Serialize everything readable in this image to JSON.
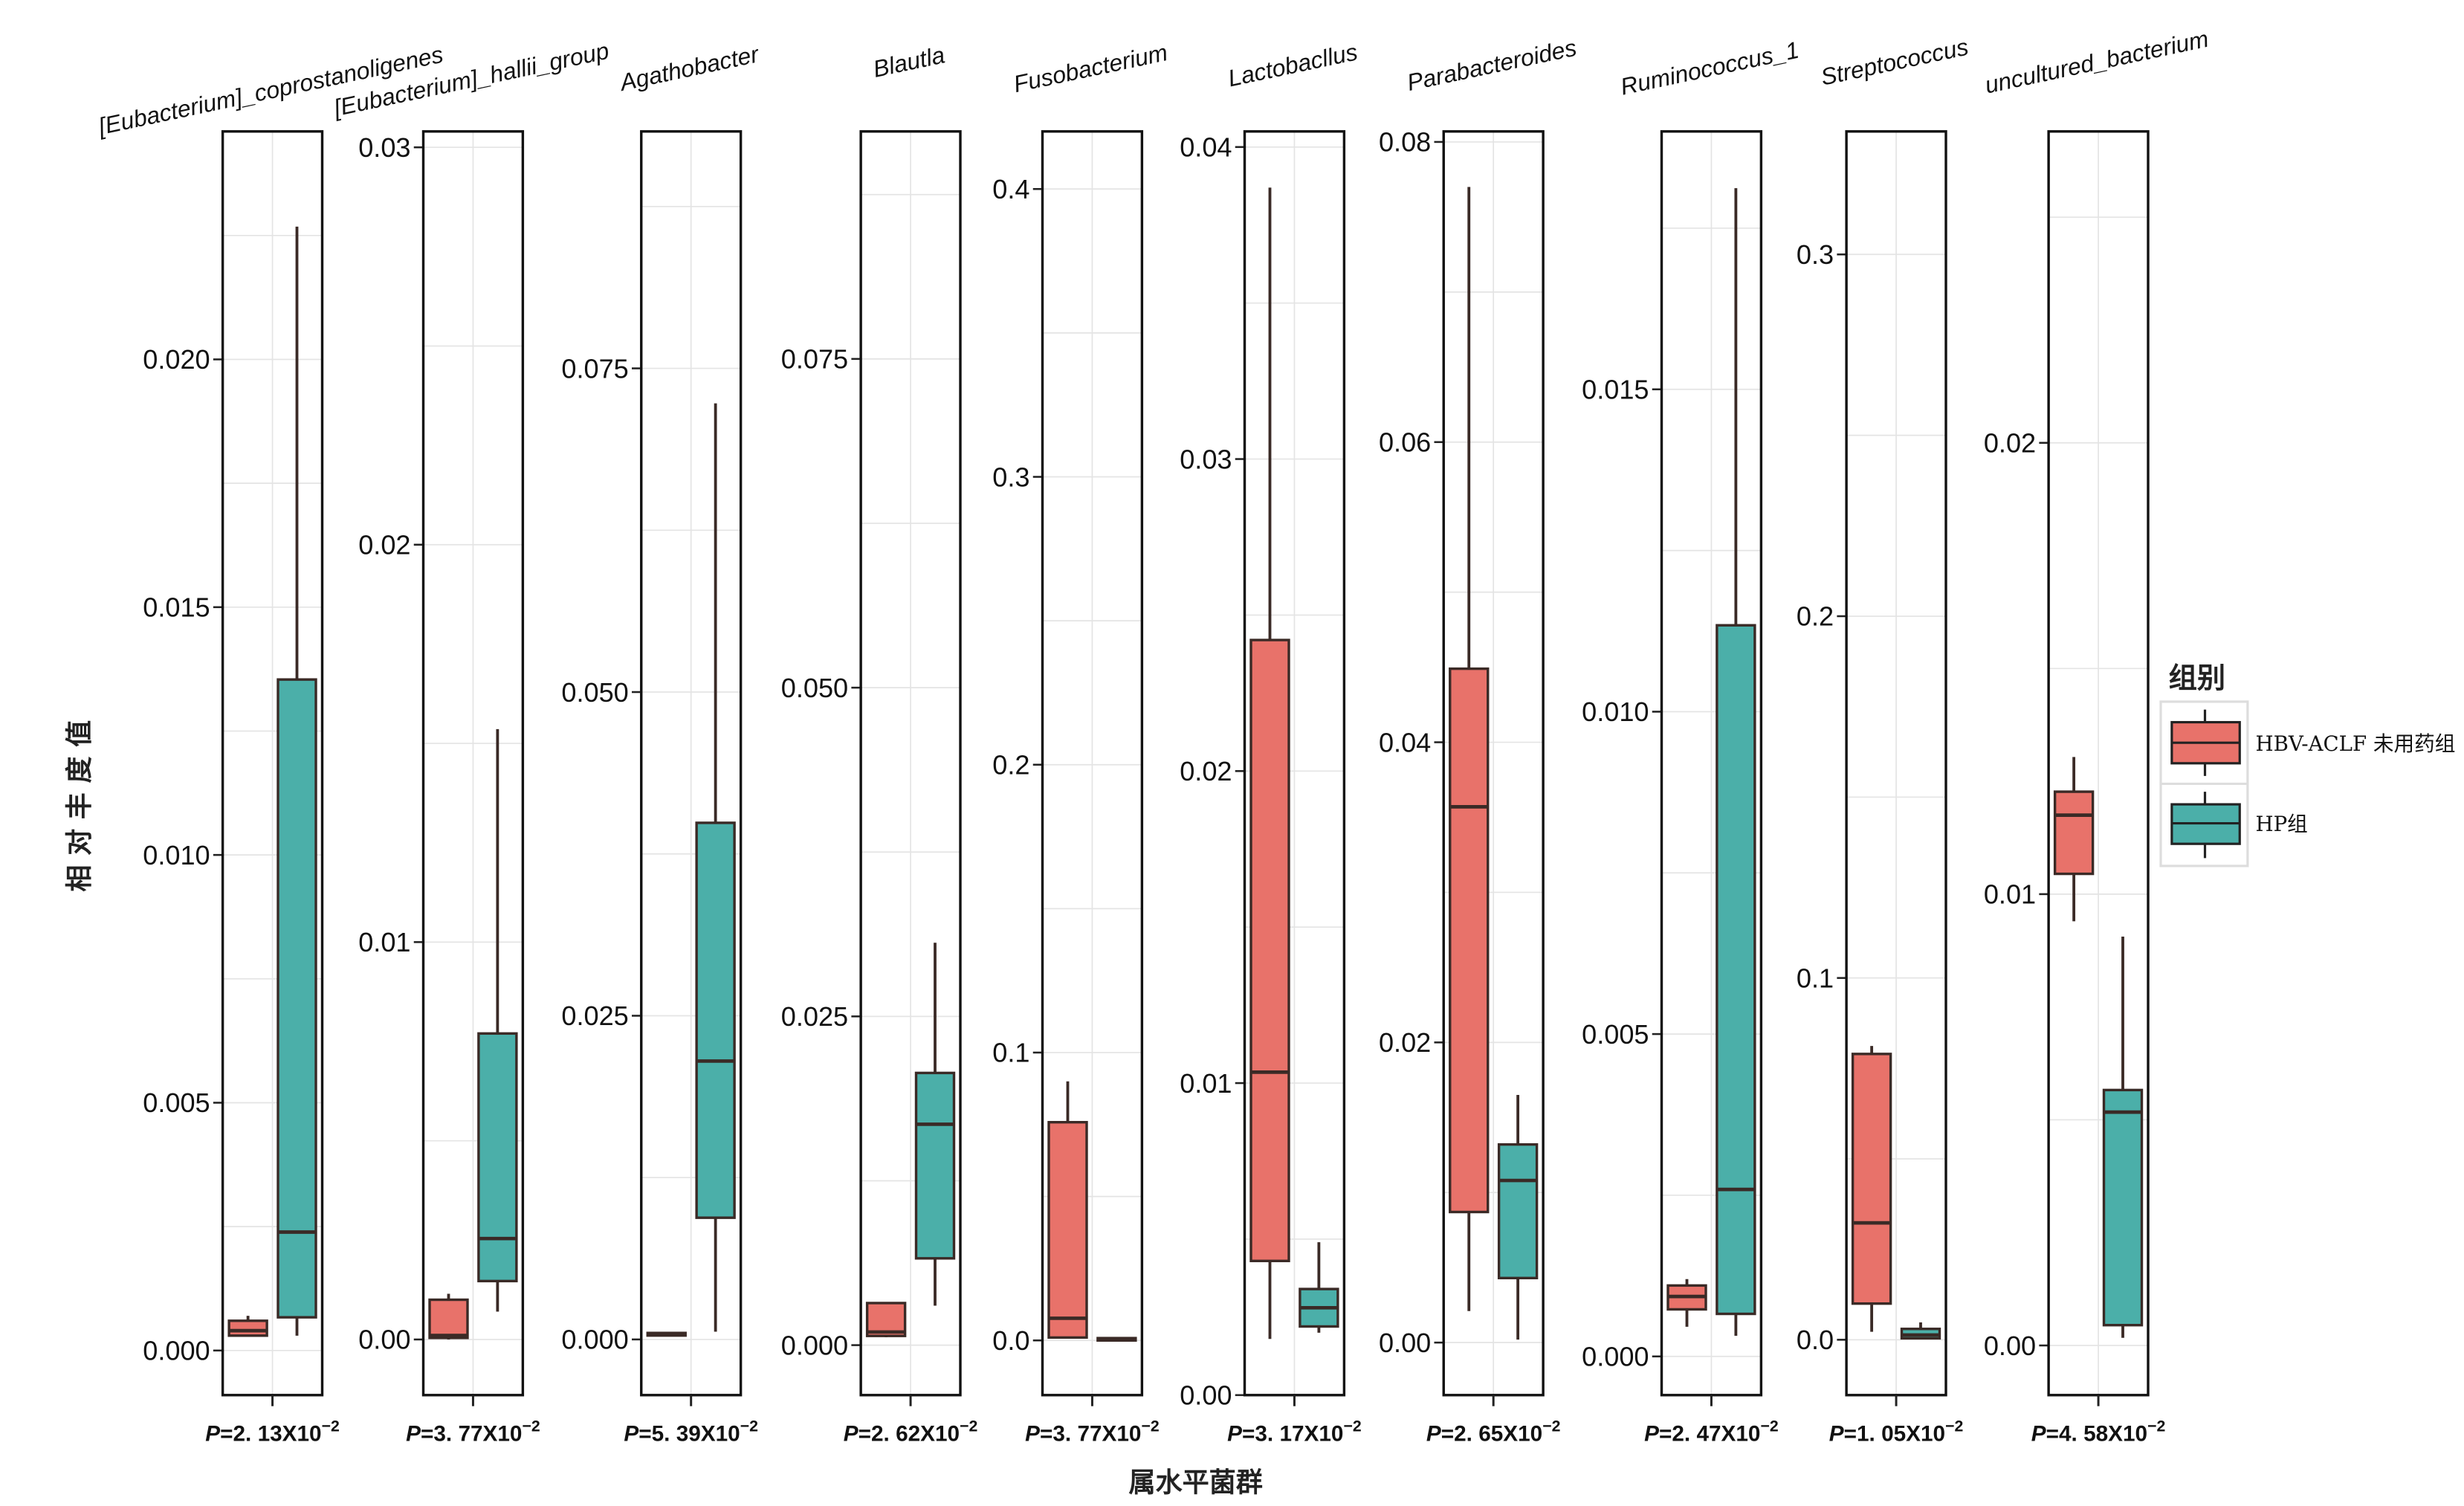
{
  "chart_data": {
    "type": "boxplot",
    "xlabel": "属水平菌群",
    "ylabel": "相 对 丰 度 值",
    "grid": true,
    "legend": {
      "title": "组别",
      "placement": "right",
      "entries": [
        {
          "name": "HBV-ACLF 未用药组",
          "color": "#E8726A"
        },
        {
          "name": "HP组",
          "color": "#4BAFA9"
        }
      ]
    },
    "facets": [
      {
        "label": "[Eubacterium]_coprostanoligenes",
        "p": "=2. 13X10",
        "exp": "−2",
        "ylim": [
          -0.0009,
          0.0246
        ],
        "ticks": [
          0.0,
          0.005,
          0.01,
          0.015,
          0.02
        ],
        "tick_labels": [
          "0.000",
          "0.005",
          "0.010",
          "0.015",
          "0.020"
        ],
        "groups": [
          [
            0.0003,
            0.0003,
            0.0004,
            0.0006,
            0.0007
          ],
          [
            0.0003,
            0.00067,
            0.00239,
            0.01354,
            0.02268
          ]
        ]
      },
      {
        "label": "[Eubacterium]_hallii_group",
        "p": "=3. 77X10",
        "exp": "−2",
        "ylim": [
          -0.0014,
          0.0304
        ],
        "ticks": [
          0.0,
          0.01,
          0.02,
          0.03
        ],
        "tick_labels": [
          "0.00",
          "0.01",
          "0.02",
          "0.03"
        ],
        "groups": [
          [
            0.0,
            4e-05,
            0.0001,
            0.001,
            0.00115
          ],
          [
            0.0007,
            0.00147,
            0.00254,
            0.0077,
            0.01536
          ]
        ]
      },
      {
        "label": "Agathobacter",
        "p": "=5. 39X10",
        "exp": "−2",
        "ylim": [
          -0.0043,
          0.0933
        ],
        "ticks": [
          0.0,
          0.025,
          0.05,
          0.075
        ],
        "tick_labels": [
          "0.000",
          "0.025",
          "0.050",
          "0.075"
        ],
        "groups": [
          [
            0.0003,
            0.0003,
            0.0004,
            0.0005,
            0.0005
          ],
          [
            0.0006,
            0.0094,
            0.0215,
            0.0399,
            0.0723
          ]
        ]
      },
      {
        "label": "Blautla",
        "p": "=2. 62X10",
        "exp": "−2",
        "ylim": [
          -0.0038,
          0.0923
        ],
        "ticks": [
          0.0,
          0.025,
          0.05,
          0.075
        ],
        "tick_labels": [
          "0.000",
          "0.025",
          "0.050",
          "0.075"
        ],
        "groups": [
          [
            0.0006,
            0.0007,
            0.001,
            0.0032,
            0.0032
          ],
          [
            0.003,
            0.0066,
            0.0168,
            0.0207,
            0.0306
          ]
        ]
      },
      {
        "label": "Fusobacterium",
        "p": "=3. 77X10",
        "exp": "−2",
        "ylim": [
          -0.019,
          0.42
        ],
        "ticks": [
          0.0,
          0.1,
          0.2,
          0.3,
          0.4
        ],
        "tick_labels": [
          "0.0",
          "0.1",
          "0.2",
          "0.3",
          "0.4"
        ],
        "groups": [
          [
            0.001,
            0.001,
            0.0077,
            0.0758,
            0.09
          ],
          [
            0.0003,
            0.0004,
            0.0005,
            0.0008,
            0.0008
          ]
        ]
      },
      {
        "label": "Lactobacllus",
        "p": "=3. 17X10",
        "exp": "−2",
        "ylim": [
          0.0,
          0.0405
        ],
        "ticks": [
          0.0,
          0.01,
          0.02,
          0.03,
          0.04
        ],
        "tick_labels": [
          "0.00",
          "0.01",
          "0.02",
          "0.03",
          "0.04"
        ],
        "groups": [
          [
            0.0018,
            0.0043,
            0.01035,
            0.0242,
            0.0387
          ],
          [
            0.002,
            0.0022,
            0.0028,
            0.0034,
            0.0049
          ]
        ]
      },
      {
        "label": "Parabacteroides",
        "p": "=2. 65X10",
        "exp": "−2",
        "ylim": [
          -0.0035,
          0.0807
        ],
        "ticks": [
          0.0,
          0.02,
          0.04,
          0.06,
          0.08
        ],
        "tick_labels": [
          "0.00",
          "0.02",
          "0.04",
          "0.06",
          "0.08"
        ],
        "groups": [
          [
            0.0021,
            0.0087,
            0.0357,
            0.0449,
            0.077
          ],
          [
            0.0002,
            0.0043,
            0.0108,
            0.0132,
            0.0165
          ]
        ]
      },
      {
        "label": "Ruminococcus_1",
        "p": "=2. 47X10",
        "exp": "−2",
        "ylim": [
          -0.0006,
          0.019
        ],
        "ticks": [
          0.0,
          0.005,
          0.01,
          0.015
        ],
        "tick_labels": [
          "0.000",
          "0.005",
          "0.010",
          "0.015"
        ],
        "groups": [
          [
            0.00046,
            0.00073,
            0.00093,
            0.0011,
            0.0012
          ],
          [
            0.00032,
            0.00066,
            0.00259,
            0.01134,
            0.01812
          ]
        ]
      },
      {
        "label": "Streptococcus",
        "p": "=1. 05X10",
        "exp": "−2",
        "ylim": [
          -0.0153,
          0.334
        ],
        "ticks": [
          0.0,
          0.1,
          0.2,
          0.3
        ],
        "tick_labels": [
          "0.0",
          "0.1",
          "0.2",
          "0.3"
        ],
        "groups": [
          [
            0.0022,
            0.01,
            0.0323,
            0.079,
            0.0812
          ],
          [
            0.0004,
            0.0004,
            0.0013,
            0.003,
            0.0048
          ]
        ]
      },
      {
        "label": "uncultured_bacterium",
        "p": "=4. 58X10",
        "exp": "−2",
        "ylim": [
          -0.0011,
          0.0269
        ],
        "ticks": [
          0.0,
          0.01,
          0.02
        ],
        "tick_labels": [
          "0.00",
          "0.01",
          "0.02"
        ],
        "groups": [
          [
            0.0094,
            0.01045,
            0.01175,
            0.01227,
            0.01304
          ],
          [
            0.00017,
            0.00045,
            0.00517,
            0.00566,
            0.00906
          ]
        ]
      }
    ]
  }
}
